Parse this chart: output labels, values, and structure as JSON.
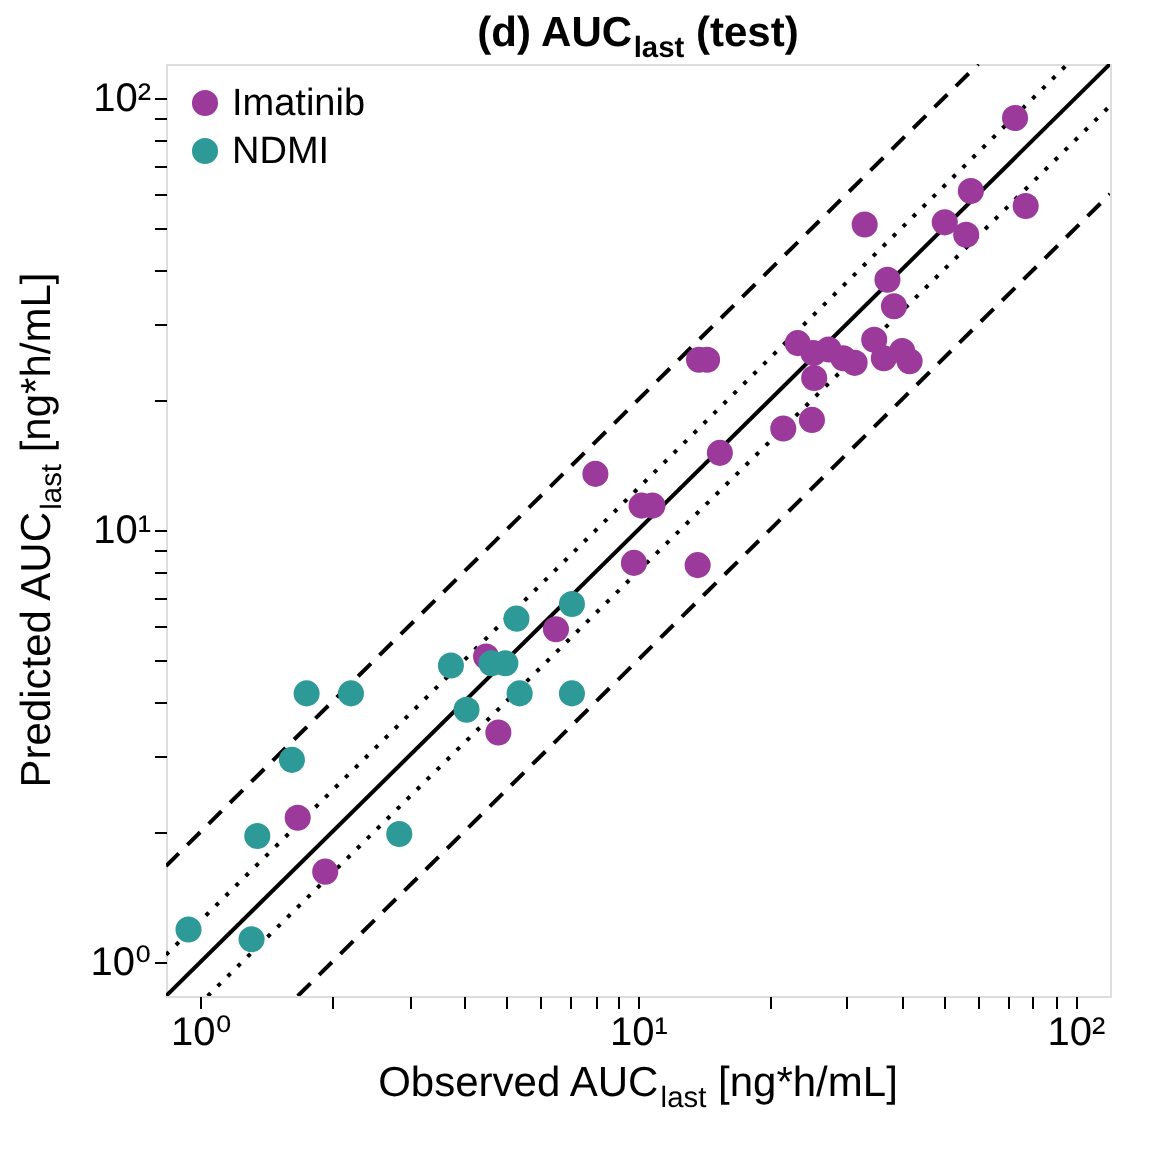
{
  "chart_data": {
    "type": "scatter",
    "title": "(d)  AUC$_{last}$  (test)",
    "xlabel": "Observed AUC$_{last}$  [ng*h/mL]",
    "ylabel": "Predicted AUC$_{last}$  [ng*h/mL]",
    "log": "xy",
    "grid": false,
    "legend": "top left",
    "xlim": [
      0.835,
      120
    ],
    "ylim": [
      0.835,
      120
    ],
    "xticks": [
      {
        "value": 1,
        "label": "10⁰"
      },
      {
        "value": 2,
        "label": null
      },
      {
        "value": 3,
        "label": null
      },
      {
        "value": 4,
        "label": null
      },
      {
        "value": 5,
        "label": null
      },
      {
        "value": 6,
        "label": null
      },
      {
        "value": 7,
        "label": null
      },
      {
        "value": 8,
        "label": null
      },
      {
        "value": 9,
        "label": null
      },
      {
        "value": 10,
        "label": "10¹"
      },
      {
        "value": 20,
        "label": null
      },
      {
        "value": 30,
        "label": null
      },
      {
        "value": 40,
        "label": null
      },
      {
        "value": 50,
        "label": null
      },
      {
        "value": 60,
        "label": null
      },
      {
        "value": 70,
        "label": null
      },
      {
        "value": 80,
        "label": null
      },
      {
        "value": 90,
        "label": null
      },
      {
        "value": 100,
        "label": "10²"
      }
    ],
    "yticks": [
      {
        "value": 1,
        "label": "10⁰"
      },
      {
        "value": 2,
        "label": null
      },
      {
        "value": 3,
        "label": null
      },
      {
        "value": 4,
        "label": null
      },
      {
        "value": 5,
        "label": null
      },
      {
        "value": 6,
        "label": null
      },
      {
        "value": 7,
        "label": null
      },
      {
        "value": 8,
        "label": null
      },
      {
        "value": 9,
        "label": null
      },
      {
        "value": 10,
        "label": "10¹"
      },
      {
        "value": 20,
        "label": null
      },
      {
        "value": 30,
        "label": null
      },
      {
        "value": 40,
        "label": null
      },
      {
        "value": 50,
        "label": null
      },
      {
        "value": 60,
        "label": null
      },
      {
        "value": 70,
        "label": null
      },
      {
        "value": 80,
        "label": null
      },
      {
        "value": 90,
        "label": null
      },
      {
        "value": 100,
        "label": "10²"
      }
    ],
    "series": [
      {
        "type": "line",
        "marker": "none",
        "color": "#000000",
        "line_style": "solid",
        "x": [
          0.835,
          120
        ],
        "values": [
          0.835,
          120
        ]
      },
      {
        "type": "line",
        "marker": "none",
        "color": "#000000",
        "line_style": "dotted",
        "x": [
          0.835,
          96
        ],
        "values": [
          1.04,
          120
        ]
      },
      {
        "type": "line",
        "marker": "none",
        "color": "#000000",
        "line_style": "dotted",
        "x": [
          1.04,
          120
        ],
        "values": [
          0.835,
          96
        ]
      },
      {
        "type": "line",
        "marker": "none",
        "color": "#000000",
        "line_style": "dashed",
        "x": [
          0.835,
          60
        ],
        "values": [
          1.67,
          120
        ]
      },
      {
        "type": "line",
        "marker": "none",
        "color": "#000000",
        "line_style": "dashed",
        "x": [
          1.67,
          120
        ],
        "values": [
          0.835,
          60
        ]
      },
      {
        "name": "Imatinib",
        "type": "scatter",
        "marker": "circle",
        "color": "#9b3a9b",
        "x": [
          72.8,
          57.7,
          77,
          50.3,
          56.3,
          33,
          37.2,
          38.5,
          13.8,
          14.4,
          23.2,
          25.2,
          27.3,
          29.5,
          31.3,
          34.7,
          36.5,
          40.2,
          41.8,
          25.3,
          25,
          21.5,
          15.4,
          8.0,
          10.2,
          10.8,
          9.8,
          13.7,
          6.5,
          4.5,
          4.8,
          1.67,
          1.93
        ],
        "values": [
          90,
          61,
          56.3,
          51.6,
          48.3,
          51,
          38,
          33,
          24.8,
          24.8,
          27.1,
          25.7,
          26.2,
          25,
          24.4,
          27.6,
          25,
          26,
          24.6,
          22.5,
          18,
          17.2,
          15.1,
          13.5,
          11.4,
          11.4,
          8.4,
          8.3,
          5.9,
          5.1,
          3.4,
          2.16,
          1.62
        ]
      },
      {
        "name": "NDMI",
        "type": "scatter",
        "marker": "circle",
        "color": "#2e9a98",
        "x": [
          0.94,
          1.31,
          1.35,
          2.85,
          1.62,
          1.75,
          2.21,
          3.74,
          4.06,
          4.63,
          4.98,
          5.37,
          5.28,
          7.07,
          7.07
        ],
        "values": [
          1.19,
          1.13,
          1.96,
          1.98,
          2.94,
          4.19,
          4.19,
          4.86,
          3.84,
          4.92,
          4.92,
          4.19,
          6.24,
          6.75,
          4.19
        ]
      }
    ]
  }
}
